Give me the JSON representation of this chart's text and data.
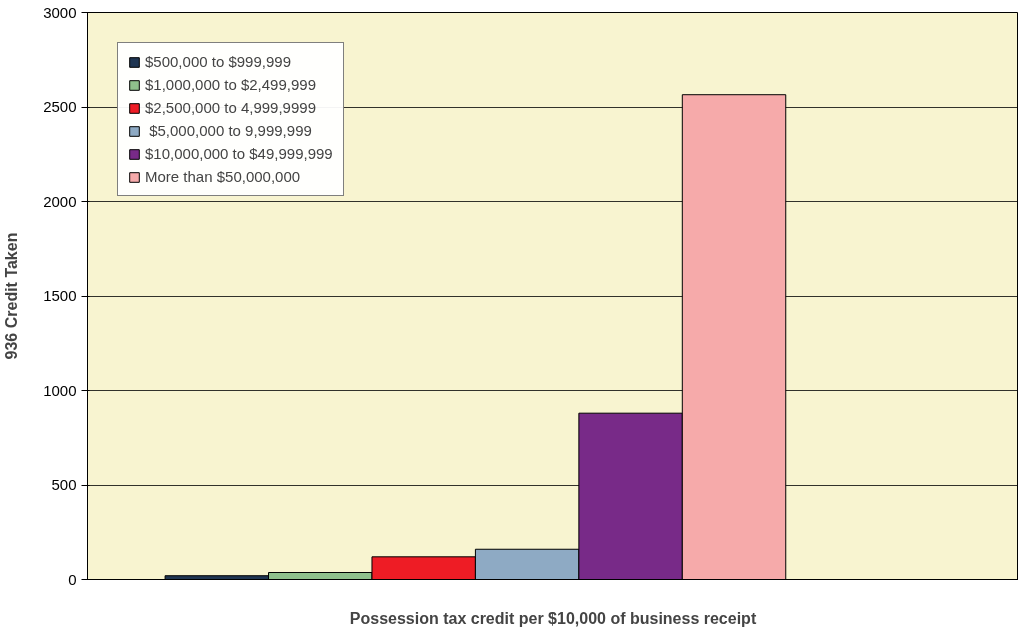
{
  "chart_data": {
    "type": "bar",
    "xlabel": "Possession tax credit per $10,000 of business receipt",
    "ylabel": "936 Credit Taken",
    "categories": [
      null
    ],
    "series": [
      {
        "name": "$500,000 to $999,999",
        "color": "#1f3552",
        "values": [
          20
        ]
      },
      {
        "name": "$1,000,000 to $2,499,999",
        "color": "#8fc08c",
        "values": [
          37
        ]
      },
      {
        "name": "$2,500,000 to 4,999,9999",
        "color": "#ee1c25",
        "values": [
          120
        ]
      },
      {
        "name": " $5,000,000 to 9,999,999",
        "color": "#8eaac4",
        "values": [
          160
        ]
      },
      {
        "name": "$10,000,000 to $49,999,999",
        "color": "#782a88",
        "values": [
          880
        ]
      },
      {
        "name": "More than $50,000,000",
        "color": "#f6aaaa",
        "values": [
          2565
        ]
      }
    ],
    "ylim": [
      0,
      3000
    ],
    "yticks": [
      0,
      500,
      1000,
      1500,
      2000,
      2500,
      3000
    ],
    "grid": "y",
    "legend": "top left"
  }
}
